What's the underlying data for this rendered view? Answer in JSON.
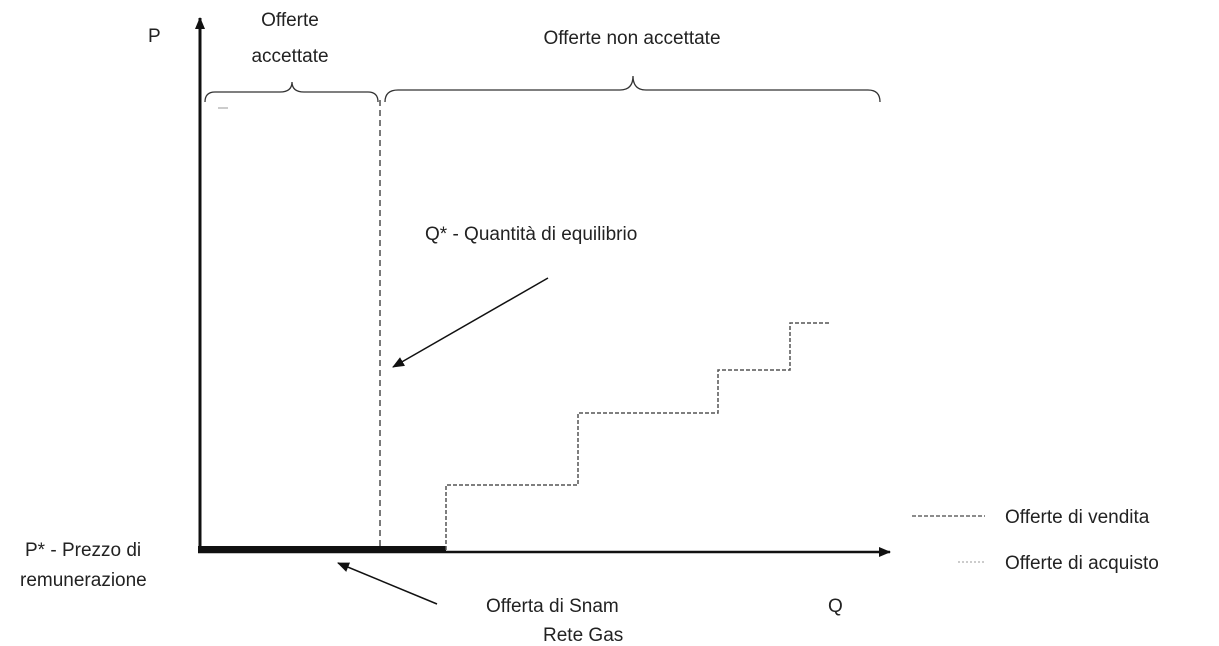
{
  "axes": {
    "y_label": "P",
    "x_label": "Q"
  },
  "groups": {
    "accepted": [
      "Offerte",
      "accettate"
    ],
    "not_accepted": "Offerte non accettate"
  },
  "annotations": {
    "equilibrium_quantity": "Q* - Quantità di equilibrio",
    "price": [
      "P* - Prezzo di",
      "remunerazione"
    ],
    "snam_offer": [
      "Offerta di Snam",
      "Rete Gas"
    ]
  },
  "legend": [
    "Offerte di vendita",
    "Offerte di acquisto"
  ]
}
